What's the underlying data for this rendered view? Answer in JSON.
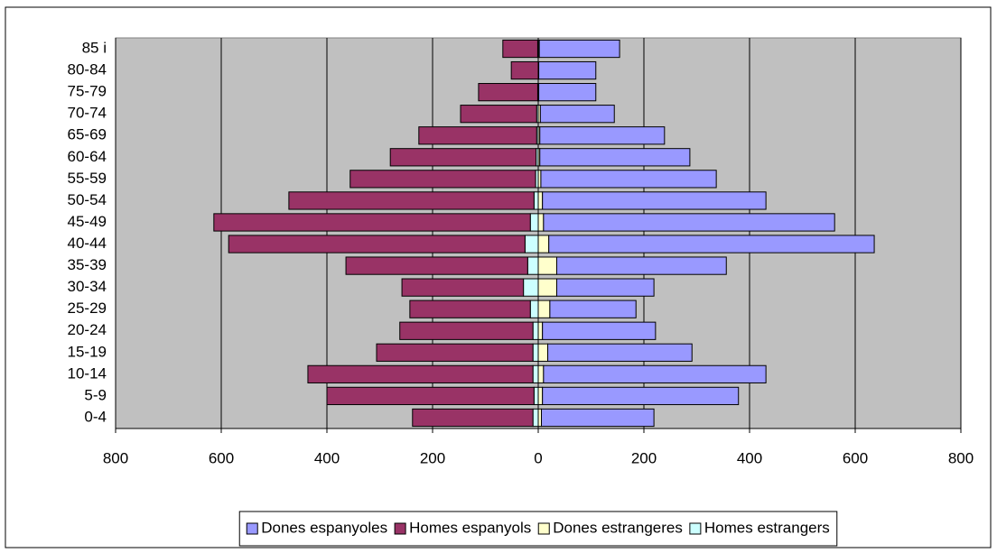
{
  "chart_data": {
    "type": "bar",
    "orientation": "horizontal",
    "stacked": true,
    "categories": [
      "85 i",
      "80-84",
      "75-79",
      "70-74",
      "65-69",
      "60-64",
      "55-59",
      "50-54",
      "45-49",
      "40-44",
      "35-39",
      "30-34",
      "25-29",
      "20-24",
      "15-19",
      "10-14",
      "5-9",
      "0-4"
    ],
    "series": [
      {
        "name": "Dones espanyoles",
        "color": "#9999ff",
        "values": [
          152,
          108,
          108,
          140,
          236,
          284,
          332,
          423,
          551,
          616,
          321,
          184,
          163,
          214,
          273,
          421,
          371,
          213
        ]
      },
      {
        "name": "Homes espanyols",
        "color": "#993366",
        "values": [
          -66,
          -51,
          -112,
          -144,
          -223,
          -276,
          -351,
          -464,
          -599,
          -561,
          -344,
          -230,
          -228,
          -252,
          -296,
          -426,
          -392,
          -228
        ]
      },
      {
        "name": "Dones estrangeres",
        "color": "#ffffcc",
        "values": [
          2,
          1,
          1,
          4,
          3,
          3,
          5,
          8,
          10,
          20,
          35,
          35,
          22,
          8,
          18,
          10,
          8,
          6
        ]
      },
      {
        "name": "Homes estrangers",
        "color": "#ccffff",
        "values": [
          -1,
          0,
          -1,
          -3,
          -3,
          -4,
          -5,
          -8,
          -15,
          -25,
          -20,
          -28,
          -15,
          -10,
          -10,
          -10,
          -8,
          -10
        ]
      }
    ],
    "xlim": [
      -800,
      800
    ],
    "xticks": [
      {
        "value": -800,
        "label": "800"
      },
      {
        "value": -600,
        "label": "600"
      },
      {
        "value": -400,
        "label": "400"
      },
      {
        "value": -200,
        "label": "200"
      },
      0,
      200,
      400,
      600,
      800
    ],
    "grid": true,
    "plot_background": "#c0c0c0",
    "legend": "bottom"
  }
}
